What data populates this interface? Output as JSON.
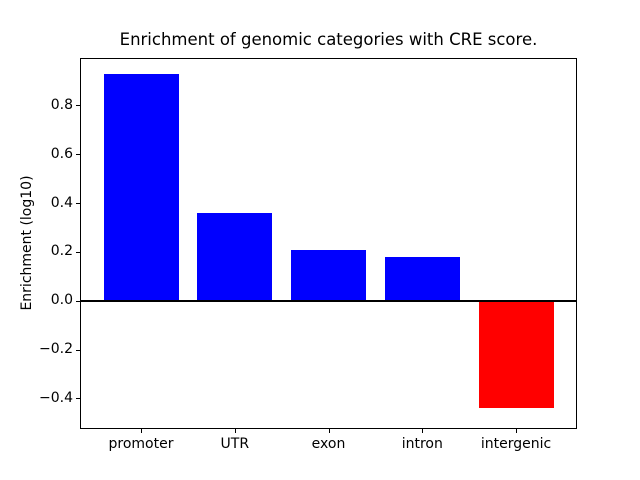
{
  "chart_data": {
    "type": "bar",
    "title": "Enrichment of genomic categories with CRE score.",
    "xlabel": "",
    "ylabel": "Enrichment (log10)",
    "categories": [
      "promoter",
      "UTR",
      "exon",
      "intron",
      "intergenic"
    ],
    "values": [
      0.93,
      0.36,
      0.21,
      0.18,
      -0.44
    ],
    "bar_colors": [
      "#0000ff",
      "#0000ff",
      "#0000ff",
      "#0000ff",
      "#ff0000"
    ],
    "positive_color": "#0000ff",
    "negative_color": "#ff0000",
    "yticks": [
      {
        "value": -0.4,
        "label": "−0.4"
      },
      {
        "value": -0.2,
        "label": "−0.2"
      },
      {
        "value": 0.0,
        "label": "0.0"
      },
      {
        "value": 0.2,
        "label": "0.2"
      },
      {
        "value": 0.4,
        "label": "0.4"
      },
      {
        "value": 0.6,
        "label": "0.6"
      },
      {
        "value": 0.8,
        "label": "0.8"
      }
    ],
    "ylim": [
      -0.521,
      0.99
    ],
    "xlim": [
      -0.64,
      4.64
    ],
    "bar_width": 0.8,
    "zero_line": true,
    "zero_line_color": "#000000",
    "grid": false,
    "legend": null,
    "background_color": "#ffffff",
    "axis_color": "#000000"
  }
}
